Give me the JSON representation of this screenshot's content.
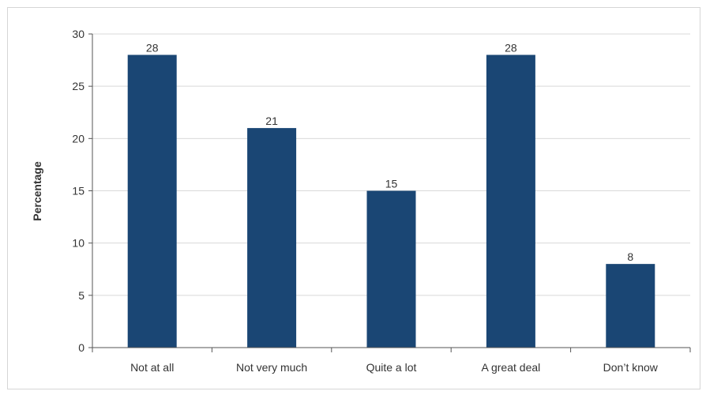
{
  "chart_data": {
    "type": "bar",
    "title": "",
    "xlabel": "",
    "ylabel": "Percentage",
    "categories": [
      "Not at all",
      "Not very much",
      "Quite a lot",
      "A great deal",
      "Don’t know"
    ],
    "values": [
      28,
      21,
      15,
      28,
      8
    ],
    "data_labels": [
      "28",
      "21",
      "15",
      "28",
      "8"
    ],
    "ylim": [
      0,
      30
    ],
    "yticks": [
      0,
      5,
      10,
      15,
      20,
      25,
      30
    ],
    "grid": true,
    "legend": "none",
    "colors": {
      "bar": "#1a4674",
      "grid": "#d9d9d9",
      "axis": "#555555"
    }
  }
}
